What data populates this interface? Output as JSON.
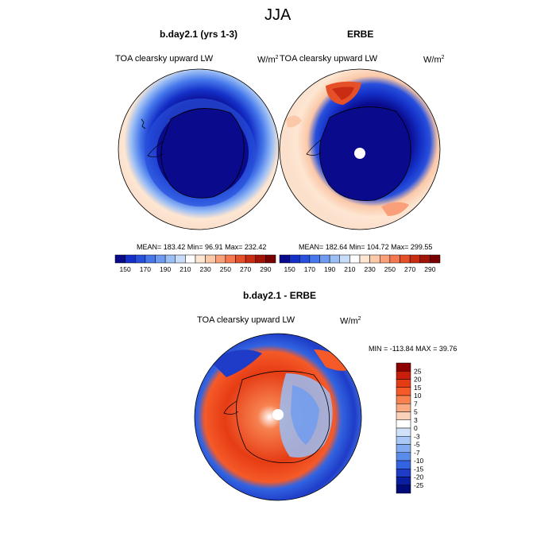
{
  "page": {
    "title": "JJA"
  },
  "panels": [
    {
      "id": "model",
      "heading": "b.day2.1 (yrs 1-3)",
      "variable": "TOA clearsky upward LW",
      "units_base": "W/m",
      "units_exp": "2",
      "stats": "MEAN= 183.42  Min=  96.91  Max= 232.42"
    },
    {
      "id": "obs",
      "heading": "ERBE",
      "variable": "TOA clearsky upward LW",
      "units_base": "W/m",
      "units_exp": "2",
      "stats": "MEAN= 182.64  Min= 104.72  Max= 299.55"
    },
    {
      "id": "diff",
      "heading": "b.day2.1 - ERBE",
      "variable": "TOA clearsky upward LW",
      "units_base": "W/m",
      "units_exp": "2",
      "stats": "MIN = -113.84  MAX =  39.76"
    }
  ],
  "horizontal_colorbar": {
    "tick_labels": [
      "150",
      "170",
      "190",
      "210",
      "230",
      "250",
      "270",
      "290"
    ],
    "colors": [
      "#0a0a8c",
      "#1430c8",
      "#2850dc",
      "#4678eb",
      "#6e9bf0",
      "#9bbef5",
      "#c8dcfa",
      "#ffffff",
      "#fde6d2",
      "#fbc8a8",
      "#f9a07a",
      "#f57850",
      "#e65028",
      "#c82d14",
      "#a01408",
      "#780000"
    ]
  },
  "vertical_colorbar": {
    "tick_labels": [
      "25",
      "20",
      "15",
      "10",
      "7",
      "5",
      "3",
      "0",
      "-3",
      "-5",
      "-7",
      "-10",
      "-15",
      "-20",
      "-25"
    ],
    "colors": [
      "#8c0000",
      "#c81e0a",
      "#e63c14",
      "#f55a28",
      "#f78250",
      "#f9aa82",
      "#fbd2b9",
      "#ffffff",
      "#d2e1fa",
      "#aac8f5",
      "#82aaf0",
      "#5a8ceb",
      "#3264e1",
      "#1e3cc8",
      "#0a1ea0",
      "#000a78"
    ]
  },
  "chart_data": [
    {
      "type": "map",
      "projection": "south polar stereographic",
      "title": "b.day2.1 (yrs 1-3)",
      "variable": "TOA clearsky upward LW",
      "units": "W/m2",
      "season": "JJA",
      "mean": 183.42,
      "min": 96.91,
      "max": 232.42,
      "contour_levels": [
        150,
        160,
        170,
        180,
        190,
        200,
        210,
        220,
        230,
        240,
        250,
        260,
        270,
        280,
        290
      ]
    },
    {
      "type": "map",
      "projection": "south polar stereographic",
      "title": "ERBE",
      "variable": "TOA clearsky upward LW",
      "units": "W/m2",
      "season": "JJA",
      "mean": 182.64,
      "min": 104.72,
      "max": 299.55,
      "contour_levels": [
        150,
        160,
        170,
        180,
        190,
        200,
        210,
        220,
        230,
        240,
        250,
        260,
        270,
        280,
        290
      ]
    },
    {
      "type": "map",
      "projection": "south polar stereographic",
      "title": "b.day2.1 - ERBE",
      "variable": "TOA clearsky upward LW",
      "units": "W/m2",
      "season": "JJA",
      "min": -113.84,
      "max": 39.76,
      "contour_levels": [
        -25,
        -20,
        -15,
        -10,
        -7,
        -5,
        -3,
        0,
        3,
        5,
        7,
        10,
        15,
        20,
        25
      ]
    }
  ]
}
